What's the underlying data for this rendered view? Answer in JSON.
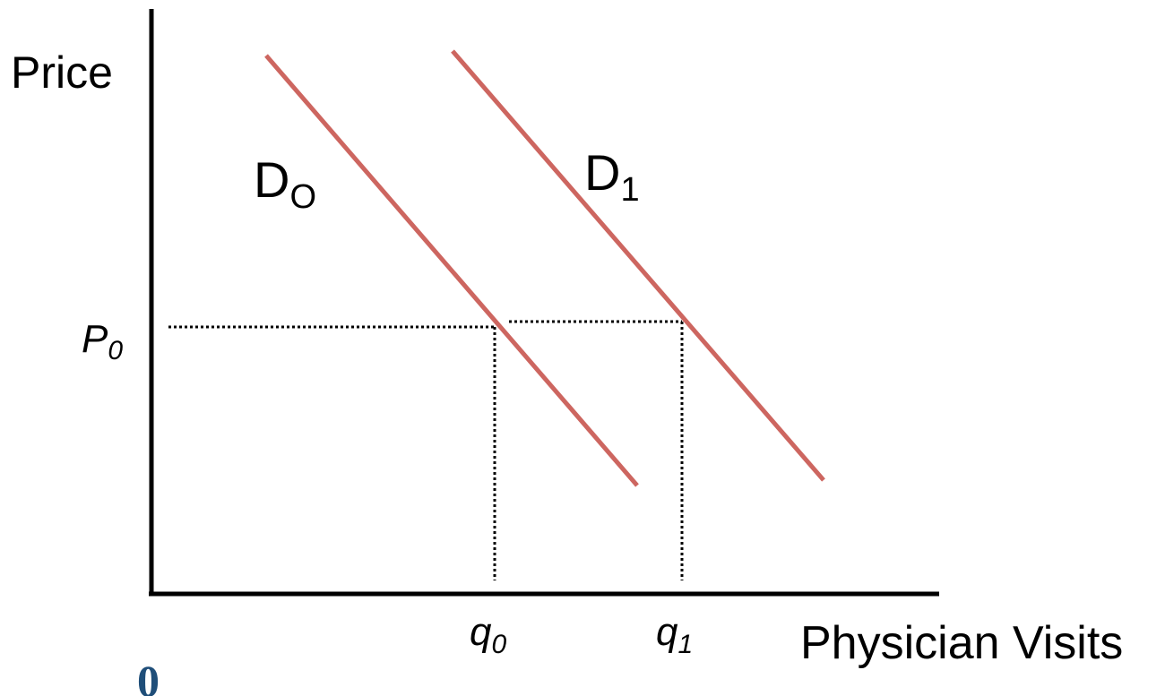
{
  "axes": {
    "y_label": "Price",
    "x_label": "Physician Visits",
    "origin_label": "0"
  },
  "curves": [
    {
      "id": "d0",
      "label_main": "D",
      "label_sub": "O"
    },
    {
      "id": "d1",
      "label_main": "D",
      "label_sub": "1"
    }
  ],
  "price_marker": {
    "main": "P",
    "sub": "0"
  },
  "quantity_markers": [
    {
      "main": "q",
      "sub": "0"
    },
    {
      "main": "q",
      "sub": "1"
    }
  ],
  "colors": {
    "demand_curve": "#cd6660",
    "axis": "#000000",
    "origin_label": "#1f4e79",
    "guide_lines": "#000000"
  }
}
